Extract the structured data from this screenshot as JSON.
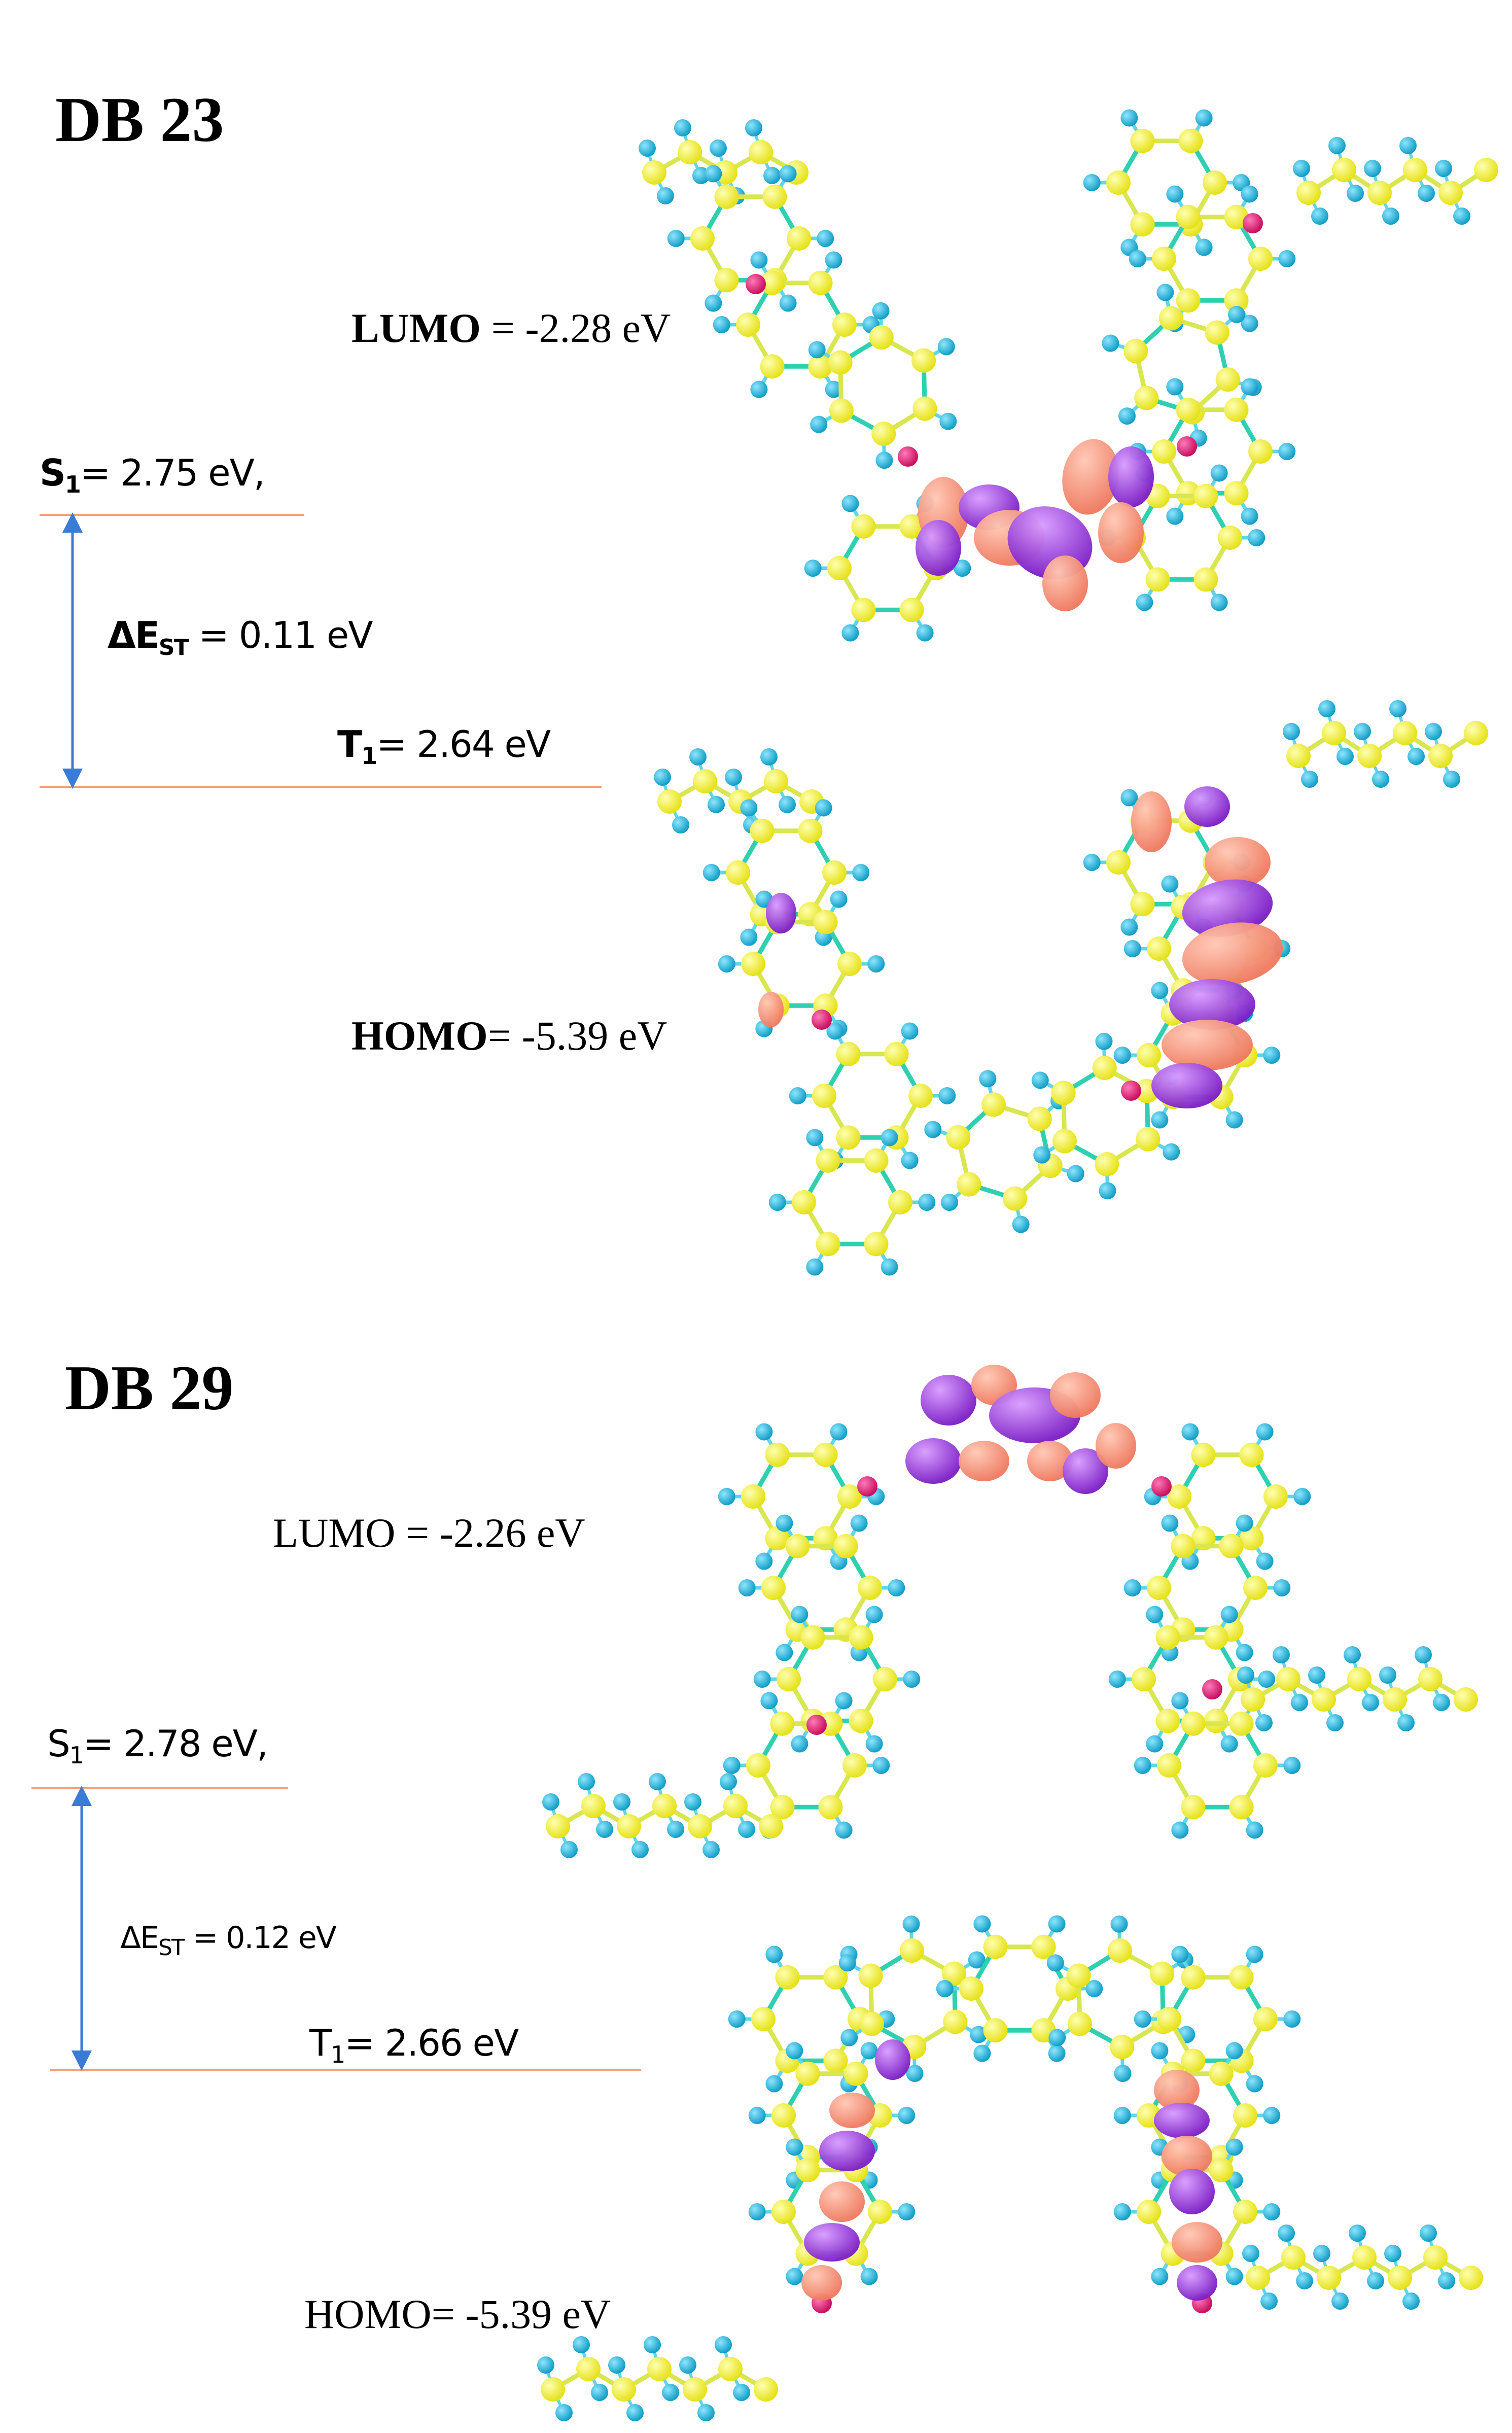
{
  "colors": {
    "level_line": "#f4a07a",
    "gap_arrow": "#3a7bd5",
    "carbon": "#f0ee24",
    "hydrogen": "#19b5d9",
    "nitrogen": "#e0207a",
    "oxygen": "#f06a5a",
    "bond": "#d8e650",
    "bond_alt": "#2fd0b0",
    "lobe_positive": "#f58a70",
    "lobe_negative": "#8e2fd6"
  },
  "panels": [
    {
      "id": "db23",
      "title": "DB 23",
      "lumo": {
        "label": "LUMO",
        "value_text": " = -2.28 eV",
        "energy_eV": -2.28
      },
      "homo": {
        "label": "HOMO",
        "value_text": "= -5.39 eV",
        "energy_eV": -5.39
      },
      "s1": {
        "symbol": "S",
        "sub": "1",
        "value_text": "= 2.75 eV,",
        "energy_eV": 2.75
      },
      "t1": {
        "symbol": "T",
        "sub": "1",
        "value_text": "= 2.64 eV",
        "energy_eV": 2.64
      },
      "delta_est": {
        "prefix": "ΔE",
        "sub": "ST",
        "value_text": " = 0.11 eV",
        "energy_eV": 0.11
      }
    },
    {
      "id": "db29",
      "title": "DB 29",
      "lumo": {
        "label": "LUMO",
        "value_text": " = -2.26 eV",
        "energy_eV": -2.26
      },
      "homo": {
        "label": "HOMO",
        "value_text": "= -5.39 eV",
        "energy_eV": -5.39
      },
      "s1": {
        "symbol": "S",
        "sub": "1",
        "value_text": "= 2.78 eV,",
        "energy_eV": 2.78
      },
      "t1": {
        "symbol": "T",
        "sub": "1",
        "value_text": "= 2.66 eV",
        "energy_eV": 2.66
      },
      "delta_est": {
        "prefix": "ΔE",
        "sub": "ST",
        "value_text": " = 0.12 eV",
        "energy_eV": 0.12
      }
    }
  ],
  "molecule_views": [
    {
      "id": "db23-lumo",
      "orbital": "LUMO",
      "shape": "V-shaped",
      "density_location": "central acceptor core"
    },
    {
      "id": "db23-homo",
      "orbital": "HOMO",
      "shape": "V-shaped",
      "density_location": "right donor arm"
    },
    {
      "id": "db29-lumo",
      "orbital": "LUMO",
      "shape": "arch",
      "density_location": "central acceptor core"
    },
    {
      "id": "db29-homo",
      "orbital": "HOMO",
      "shape": "arch",
      "density_location": "both donor arms"
    }
  ]
}
